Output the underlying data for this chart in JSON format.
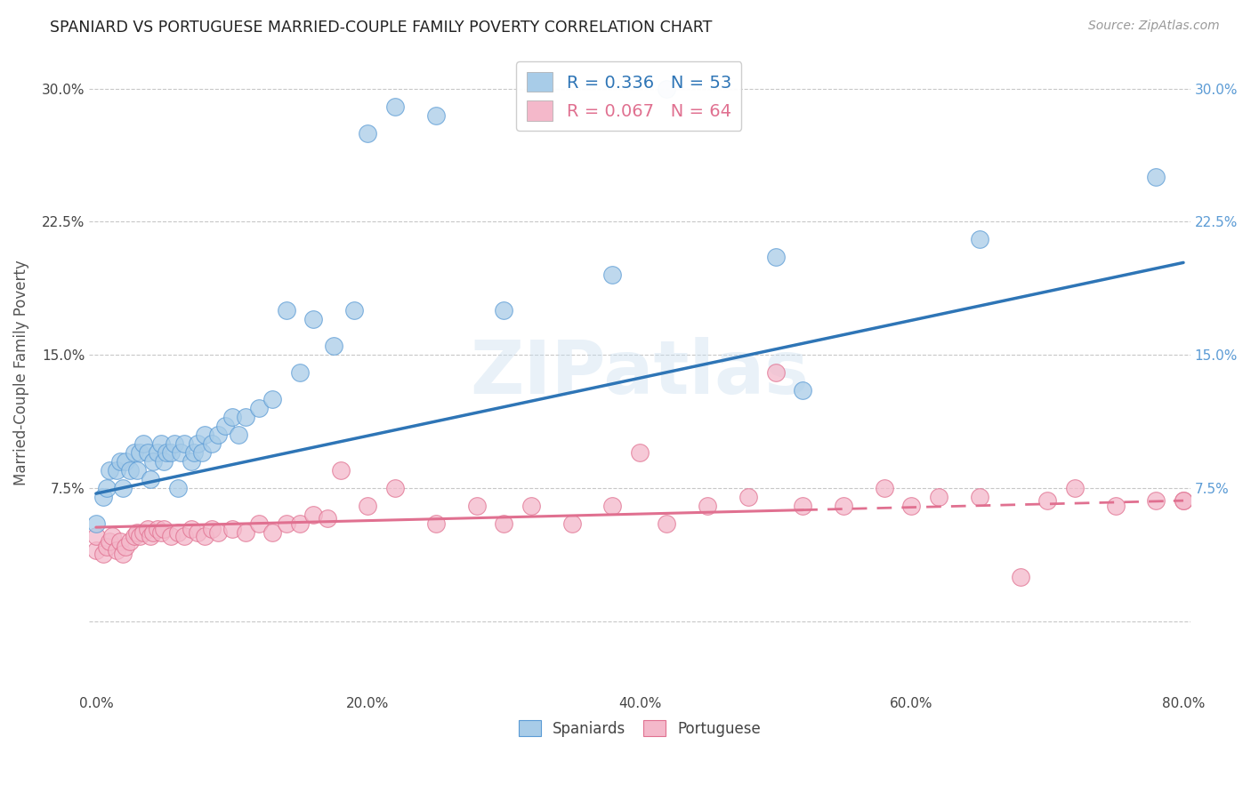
{
  "title": "SPANIARD VS PORTUGUESE MARRIED-COUPLE FAMILY POVERTY CORRELATION CHART",
  "source": "Source: ZipAtlas.com",
  "ylabel_label": "Married-Couple Family Poverty",
  "xmin": 0.0,
  "xmax": 0.8,
  "ymin": -0.04,
  "ymax": 0.32,
  "yticks": [
    0.0,
    0.075,
    0.15,
    0.225,
    0.3
  ],
  "ytick_labels": [
    "",
    "7.5%",
    "15.0%",
    "22.5%",
    "30.0%"
  ],
  "xticks": [
    0.0,
    0.2,
    0.4,
    0.6,
    0.8
  ],
  "xtick_labels": [
    "0.0%",
    "20.0%",
    "40.0%",
    "60.0%",
    "80.0%"
  ],
  "spaniards_R": 0.336,
  "spaniards_N": 53,
  "portuguese_R": 0.067,
  "portuguese_N": 64,
  "spaniards_color": "#a8cce8",
  "portuguese_color": "#f4b8ca",
  "spaniards_edge_color": "#5b9bd5",
  "portuguese_edge_color": "#e07090",
  "spaniards_line_color": "#2e75b6",
  "portuguese_line_color": "#e07090",
  "watermark": "ZIPatlas",
  "background_color": "#ffffff",
  "grid_color": "#c8c8c8",
  "sp_line_y0": 0.072,
  "sp_line_y1": 0.202,
  "pt_line_y0": 0.053,
  "pt_line_y1": 0.068,
  "spaniards_x": [
    0.0,
    0.005,
    0.008,
    0.01,
    0.015,
    0.018,
    0.02,
    0.022,
    0.025,
    0.028,
    0.03,
    0.032,
    0.035,
    0.038,
    0.04,
    0.042,
    0.045,
    0.048,
    0.05,
    0.052,
    0.055,
    0.058,
    0.06,
    0.062,
    0.065,
    0.07,
    0.072,
    0.075,
    0.078,
    0.08,
    0.085,
    0.09,
    0.095,
    0.1,
    0.105,
    0.11,
    0.12,
    0.13,
    0.14,
    0.15,
    0.16,
    0.175,
    0.19,
    0.2,
    0.22,
    0.25,
    0.3,
    0.38,
    0.42,
    0.5,
    0.52,
    0.65,
    0.78
  ],
  "spaniards_y": [
    0.055,
    0.07,
    0.075,
    0.085,
    0.085,
    0.09,
    0.075,
    0.09,
    0.085,
    0.095,
    0.085,
    0.095,
    0.1,
    0.095,
    0.08,
    0.09,
    0.095,
    0.1,
    0.09,
    0.095,
    0.095,
    0.1,
    0.075,
    0.095,
    0.1,
    0.09,
    0.095,
    0.1,
    0.095,
    0.105,
    0.1,
    0.105,
    0.11,
    0.115,
    0.105,
    0.115,
    0.12,
    0.125,
    0.175,
    0.14,
    0.17,
    0.155,
    0.175,
    0.275,
    0.29,
    0.285,
    0.175,
    0.195,
    0.3,
    0.205,
    0.13,
    0.215,
    0.25
  ],
  "portuguese_x": [
    0.0,
    0.0,
    0.005,
    0.008,
    0.01,
    0.012,
    0.015,
    0.018,
    0.02,
    0.022,
    0.025,
    0.028,
    0.03,
    0.032,
    0.035,
    0.038,
    0.04,
    0.042,
    0.045,
    0.048,
    0.05,
    0.055,
    0.06,
    0.065,
    0.07,
    0.075,
    0.08,
    0.085,
    0.09,
    0.1,
    0.11,
    0.12,
    0.13,
    0.14,
    0.15,
    0.16,
    0.17,
    0.18,
    0.2,
    0.22,
    0.25,
    0.28,
    0.3,
    0.32,
    0.35,
    0.38,
    0.4,
    0.42,
    0.45,
    0.48,
    0.5,
    0.52,
    0.55,
    0.58,
    0.6,
    0.62,
    0.65,
    0.68,
    0.7,
    0.72,
    0.75,
    0.78,
    0.8,
    0.8
  ],
  "portuguese_y": [
    0.04,
    0.048,
    0.038,
    0.042,
    0.045,
    0.048,
    0.04,
    0.045,
    0.038,
    0.042,
    0.045,
    0.048,
    0.05,
    0.048,
    0.05,
    0.052,
    0.048,
    0.05,
    0.052,
    0.05,
    0.052,
    0.048,
    0.05,
    0.048,
    0.052,
    0.05,
    0.048,
    0.052,
    0.05,
    0.052,
    0.05,
    0.055,
    0.05,
    0.055,
    0.055,
    0.06,
    0.058,
    0.085,
    0.065,
    0.075,
    0.055,
    0.065,
    0.055,
    0.065,
    0.055,
    0.065,
    0.095,
    0.055,
    0.065,
    0.07,
    0.14,
    0.065,
    0.065,
    0.075,
    0.065,
    0.07,
    0.07,
    0.025,
    0.068,
    0.075,
    0.065,
    0.068,
    0.068,
    0.068
  ]
}
